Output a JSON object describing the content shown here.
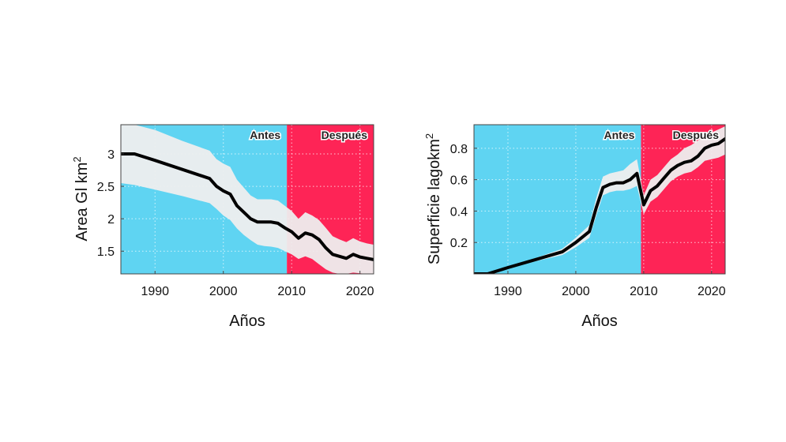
{
  "chart_data": [
    {
      "type": "line",
      "xlabel": "Años",
      "ylabel": "Area Gl km",
      "ylabel_sup": "2",
      "xlim": [
        1985,
        2022
      ],
      "ylim": [
        1.15,
        3.45
      ],
      "xticks": [
        1990,
        2000,
        2010,
        2020
      ],
      "xtick_labels": [
        "1990",
        "2000",
        "2010",
        "2020"
      ],
      "yticks": [
        1.5,
        2,
        2.5,
        3
      ],
      "ytick_labels": [
        "1.5",
        "2",
        "2.5",
        "3"
      ],
      "grid": true,
      "regions": [
        {
          "label": "Antes",
          "x0": 1985,
          "x1": 2009.3,
          "color": "#5fd4f2"
        },
        {
          "label": "Después",
          "x0": 2009.3,
          "x1": 2022,
          "color": "#fe2456"
        }
      ],
      "band_color": "#eeeeee",
      "line_color": "#000000",
      "x": [
        1985,
        1987,
        1990,
        1994,
        1998,
        1999,
        2000,
        2001,
        2002,
        2003,
        2004,
        2005,
        2006,
        2007,
        2008,
        2009,
        2010,
        2011,
        2012,
        2013,
        2014,
        2015,
        2016,
        2017,
        2018,
        2019,
        2020,
        2021,
        2022
      ],
      "y": [
        3.0,
        3.0,
        2.9,
        2.76,
        2.62,
        2.5,
        2.43,
        2.38,
        2.2,
        2.1,
        2.0,
        1.95,
        1.95,
        1.95,
        1.93,
        1.86,
        1.8,
        1.7,
        1.78,
        1.75,
        1.68,
        1.55,
        1.45,
        1.42,
        1.39,
        1.45,
        1.41,
        1.39,
        1.37
      ],
      "lower": [
        2.55,
        2.52,
        2.45,
        2.35,
        2.24,
        2.15,
        2.05,
        1.98,
        1.85,
        1.75,
        1.67,
        1.6,
        1.58,
        1.57,
        1.55,
        1.5,
        1.45,
        1.38,
        1.42,
        1.38,
        1.3,
        1.22,
        1.17,
        1.15,
        1.15,
        1.17,
        1.16,
        1.15,
        1.15
      ],
      "upper": [
        3.45,
        3.45,
        3.37,
        3.2,
        3.05,
        2.92,
        2.85,
        2.8,
        2.6,
        2.48,
        2.36,
        2.3,
        2.3,
        2.3,
        2.28,
        2.2,
        2.12,
        2.0,
        2.1,
        2.05,
        1.98,
        1.86,
        1.73,
        1.68,
        1.64,
        1.7,
        1.65,
        1.62,
        1.6
      ]
    },
    {
      "type": "line",
      "xlabel": "Años",
      "ylabel": "Superficie lagokm",
      "ylabel_sup": "2",
      "xlim": [
        1985,
        2022
      ],
      "ylim": [
        0,
        0.95
      ],
      "xticks": [
        1990,
        2000,
        2010,
        2020
      ],
      "xtick_labels": [
        "1990",
        "2000",
        "2010",
        "2020"
      ],
      "yticks": [
        0.2,
        0.4,
        0.6,
        0.8
      ],
      "ytick_labels": [
        "0.2",
        "0.4",
        "0.6",
        "0.8"
      ],
      "grid": true,
      "regions": [
        {
          "label": "Antes",
          "x0": 1985,
          "x1": 2009.6,
          "color": "#5fd4f2"
        },
        {
          "label": "Después",
          "x0": 2009.6,
          "x1": 2022,
          "color": "#fe2456"
        }
      ],
      "band_color": "#eeeeee",
      "line_color": "#000000",
      "x": [
        1985,
        1987,
        1990,
        1994,
        1998,
        2000,
        2002,
        2003,
        2004,
        2005,
        2006,
        2007,
        2008,
        2009,
        2010,
        2011,
        2012,
        2013,
        2014,
        2015,
        2016,
        2017,
        2018,
        2019,
        2020,
        2021,
        2022
      ],
      "y": [
        0.0,
        0.0,
        0.04,
        0.09,
        0.14,
        0.2,
        0.27,
        0.42,
        0.55,
        0.57,
        0.58,
        0.58,
        0.6,
        0.64,
        0.44,
        0.53,
        0.56,
        0.61,
        0.66,
        0.69,
        0.71,
        0.72,
        0.75,
        0.8,
        0.82,
        0.83,
        0.86
      ],
      "lower": [
        0.0,
        0.0,
        0.035,
        0.08,
        0.12,
        0.17,
        0.23,
        0.37,
        0.5,
        0.52,
        0.53,
        0.53,
        0.54,
        0.56,
        0.38,
        0.46,
        0.49,
        0.54,
        0.59,
        0.62,
        0.64,
        0.65,
        0.68,
        0.72,
        0.73,
        0.74,
        0.76
      ],
      "upper": [
        0.0,
        0.0,
        0.045,
        0.1,
        0.16,
        0.23,
        0.31,
        0.48,
        0.62,
        0.64,
        0.65,
        0.66,
        0.7,
        0.73,
        0.5,
        0.6,
        0.63,
        0.68,
        0.73,
        0.76,
        0.8,
        0.82,
        0.85,
        0.88,
        0.9,
        0.92,
        0.94
      ]
    }
  ]
}
